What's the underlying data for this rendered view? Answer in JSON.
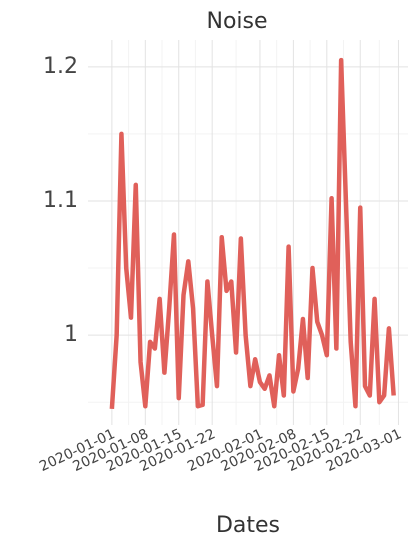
{
  "chart_data": {
    "type": "line",
    "title": "Noise",
    "x_label": "Dates",
    "x": [
      "2020-01-01",
      "2020-01-02",
      "2020-01-03",
      "2020-01-04",
      "2020-01-05",
      "2020-01-06",
      "2020-01-07",
      "2020-01-08",
      "2020-01-09",
      "2020-01-10",
      "2020-01-11",
      "2020-01-12",
      "2020-01-13",
      "2020-01-14",
      "2020-01-15",
      "2020-01-16",
      "2020-01-17",
      "2020-01-18",
      "2020-01-19",
      "2020-01-20",
      "2020-01-21",
      "2020-01-22",
      "2020-01-23",
      "2020-01-24",
      "2020-01-25",
      "2020-01-26",
      "2020-01-27",
      "2020-01-28",
      "2020-01-29",
      "2020-01-30",
      "2020-01-31",
      "2020-02-01",
      "2020-02-02",
      "2020-02-03",
      "2020-02-04",
      "2020-02-05",
      "2020-02-06",
      "2020-02-07",
      "2020-02-08",
      "2020-02-09",
      "2020-02-10",
      "2020-02-11",
      "2020-02-12",
      "2020-02-13",
      "2020-02-14",
      "2020-02-15",
      "2020-02-16",
      "2020-02-17",
      "2020-02-18",
      "2020-02-19",
      "2020-02-20",
      "2020-02-21",
      "2020-02-22",
      "2020-02-23",
      "2020-02-24",
      "2020-02-25",
      "2020-02-26",
      "2020-02-27",
      "2020-02-28",
      "2020-02-29"
    ],
    "series": [
      {
        "name": "Noise",
        "color": "#e0605a",
        "values": [
          0.945,
          1.0,
          1.15,
          1.05,
          1.013,
          1.112,
          0.98,
          0.947,
          0.995,
          0.99,
          1.027,
          0.972,
          1.02,
          1.075,
          0.953,
          1.03,
          1.055,
          1.02,
          0.947,
          0.948,
          1.04,
          1.0,
          0.962,
          1.073,
          1.033,
          1.04,
          0.987,
          1.072,
          1.0,
          0.962,
          0.982,
          0.965,
          0.96,
          0.97,
          0.947,
          0.985,
          0.955,
          1.066,
          0.958,
          0.975,
          1.012,
          0.968,
          1.05,
          1.01,
          1.0,
          0.985,
          1.102,
          0.99,
          1.205,
          1.1,
          0.995,
          0.947,
          1.095,
          0.962,
          0.955,
          1.027,
          0.95,
          0.955,
          1.005,
          0.955
        ]
      }
    ],
    "xlim": [
      "2019-12-27",
      "2020-03-03"
    ],
    "xticks": [
      "2020-01-01",
      "2020-01-08",
      "2020-01-15",
      "2020-01-22",
      "2020-02-01",
      "2020-02-08",
      "2020-02-15",
      "2020-02-22",
      "2020-03-01"
    ],
    "ylim": [
      0.933,
      1.22
    ],
    "yticks": [
      1,
      1.1,
      1.2
    ],
    "grid": true,
    "minor_grid": true,
    "legend": false
  }
}
